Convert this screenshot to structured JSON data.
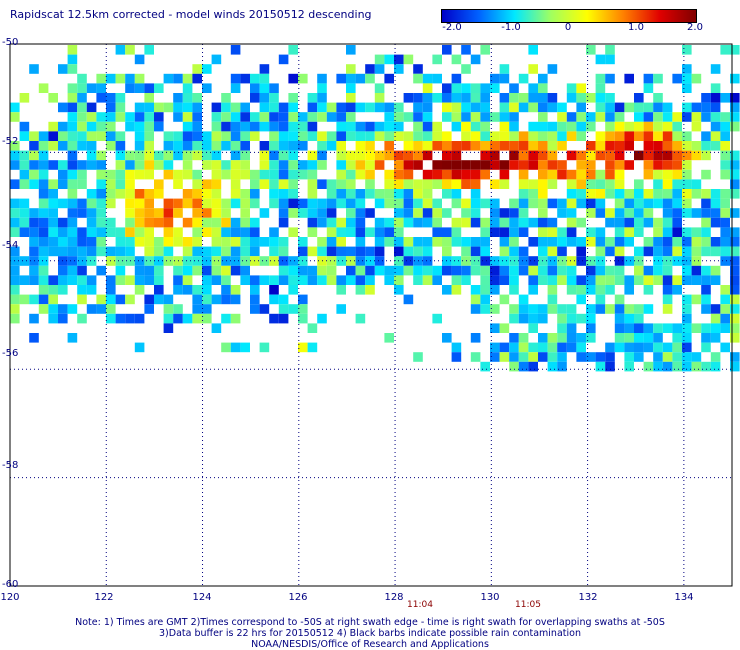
{
  "title": "Rapidscat 12.5km corrected - model winds 20150512 descending",
  "colorbar": {
    "labels": [
      "-2.0",
      "-1.0",
      "0",
      "1.0",
      "2.0"
    ],
    "colors": [
      "#0000c8",
      "#0060ff",
      "#00e8ff",
      "#a0ff60",
      "#ffff00",
      "#ff8000",
      "#e00000",
      "#800000"
    ]
  },
  "axes": {
    "lat_labels": [
      "-50",
      "-52",
      "-54",
      "-56",
      "-58",
      "-60"
    ],
    "lon_labels": [
      "120",
      "122",
      "124",
      "126",
      "128",
      "130",
      "132",
      "134"
    ]
  },
  "times": [
    "11:04",
    "11:05"
  ],
  "notes": [
    "Note: 1) Times are GMT 2)Times correspond to -50S at right swath edge - time is right swath for overlapping swaths at -50S",
    "3)Data buffer is 22 hrs for 20150512 4) Black barbs indicate possible rain contamination",
    "NOAA/NESDIS/Office of Research and Applications"
  ],
  "map_data": {
    "lon_range": [
      120,
      135
    ],
    "lat_range": [
      -60,
      -50
    ],
    "value_range": [
      -2.0,
      2.0
    ],
    "blobs": [
      {
        "lon": 123.2,
        "lat": -52.9,
        "value": 1.0,
        "spread_lon": 1.3,
        "spread_lat": 0.8
      },
      {
        "lon": 129.5,
        "lat": -52.1,
        "value": 2.0,
        "spread_lon": 2.5,
        "spread_lat": 0.45
      },
      {
        "lon": 133.0,
        "lat": -51.9,
        "value": 1.8,
        "spread_lon": 1.2,
        "spread_lat": 0.45
      },
      {
        "lon": 121.0,
        "lat": -53.5,
        "value": -1.3,
        "spread_lon": 1.0,
        "spread_lat": 0.9
      },
      {
        "lon": 131.5,
        "lat": -55.0,
        "value": -0.8,
        "spread_lon": 2.0,
        "spread_lat": 0.6
      }
    ]
  }
}
